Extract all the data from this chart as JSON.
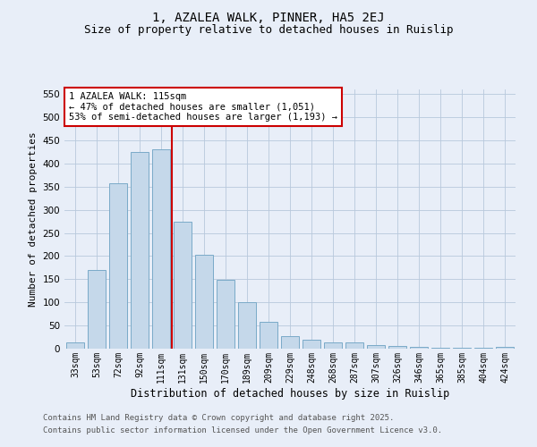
{
  "title1": "1, AZALEA WALK, PINNER, HA5 2EJ",
  "title2": "Size of property relative to detached houses in Ruislip",
  "xlabel": "Distribution of detached houses by size in Ruislip",
  "ylabel": "Number of detached properties",
  "categories": [
    "33sqm",
    "53sqm",
    "72sqm",
    "92sqm",
    "111sqm",
    "131sqm",
    "150sqm",
    "170sqm",
    "189sqm",
    "209sqm",
    "229sqm",
    "248sqm",
    "268sqm",
    "287sqm",
    "307sqm",
    "326sqm",
    "346sqm",
    "365sqm",
    "385sqm",
    "404sqm",
    "424sqm"
  ],
  "values": [
    14,
    170,
    357,
    425,
    430,
    275,
    202,
    148,
    100,
    57,
    27,
    20,
    13,
    13,
    8,
    5,
    4,
    2,
    1,
    1,
    3
  ],
  "bar_color": "#c5d8ea",
  "bar_edge_color": "#7aaac8",
  "vline_color": "#cc0000",
  "annotation_text": "1 AZALEA WALK: 115sqm\n← 47% of detached houses are smaller (1,051)\n53% of semi-detached houses are larger (1,193) →",
  "annotation_box_color": "white",
  "annotation_box_edge_color": "#cc0000",
  "ylim": [
    0,
    560
  ],
  "yticks": [
    0,
    50,
    100,
    150,
    200,
    250,
    300,
    350,
    400,
    450,
    500,
    550
  ],
  "footer1": "Contains HM Land Registry data © Crown copyright and database right 2025.",
  "footer2": "Contains public sector information licensed under the Open Government Licence v3.0.",
  "bg_color": "#e8eef8",
  "grid_color": "#b8c8dc",
  "title_fontsize": 10,
  "subtitle_fontsize": 9
}
